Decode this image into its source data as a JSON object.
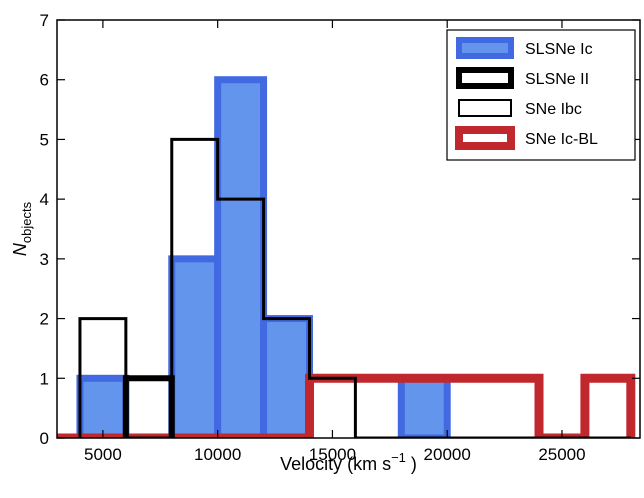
{
  "chart_data": {
    "type": "histogram",
    "xlabel_main": "Velocity (km s",
    "xlabel_sup": "−1",
    "xlabel_tail": ")",
    "ylabel_main": "N",
    "ylabel_sub": "objects",
    "xlim": [
      3000,
      28400
    ],
    "ylim": [
      0,
      7
    ],
    "xticks": [
      5000,
      10000,
      15000,
      20000,
      25000
    ],
    "yticks": [
      0,
      1,
      2,
      3,
      4,
      5,
      6,
      7
    ],
    "legend_position": "top-right",
    "series": [
      {
        "name": "SLSNe Ic",
        "style": "filled",
        "color": "#6495ed",
        "edge_color": "#4169e1",
        "bin_width": 2000,
        "bins": [
          [
            4000,
            1
          ],
          [
            6000,
            0
          ],
          [
            8000,
            3
          ],
          [
            10000,
            6
          ],
          [
            12000,
            2
          ],
          [
            14000,
            0
          ],
          [
            16000,
            0
          ],
          [
            18000,
            1
          ]
        ]
      },
      {
        "name": "SLSNe II",
        "style": "thick-step",
        "color": "#000000",
        "bin_width": 2000,
        "bins": [
          [
            6000,
            1
          ]
        ]
      },
      {
        "name": "SNe Ibc",
        "style": "step",
        "color": "#000000",
        "bin_width": 2000,
        "bins": [
          [
            4000,
            2
          ],
          [
            6000,
            0
          ],
          [
            8000,
            5
          ],
          [
            10000,
            4
          ],
          [
            12000,
            2
          ],
          [
            14000,
            1
          ],
          [
            16000,
            0
          ],
          [
            18000,
            0
          ],
          [
            20000,
            0
          ],
          [
            22000,
            0
          ],
          [
            24000,
            0
          ],
          [
            26000,
            0
          ]
        ]
      },
      {
        "name": "SNe Ic-BL",
        "style": "thick-step",
        "color": "#c0282d",
        "bin_width": 2000,
        "bins": [
          [
            2000,
            0
          ],
          [
            4000,
            0
          ],
          [
            6000,
            0
          ],
          [
            8000,
            0
          ],
          [
            10000,
            0
          ],
          [
            12000,
            0
          ],
          [
            14000,
            1
          ],
          [
            16000,
            1
          ],
          [
            18000,
            1
          ],
          [
            20000,
            1
          ],
          [
            22000,
            1
          ],
          [
            24000,
            0
          ],
          [
            26000,
            1
          ]
        ]
      }
    ]
  }
}
